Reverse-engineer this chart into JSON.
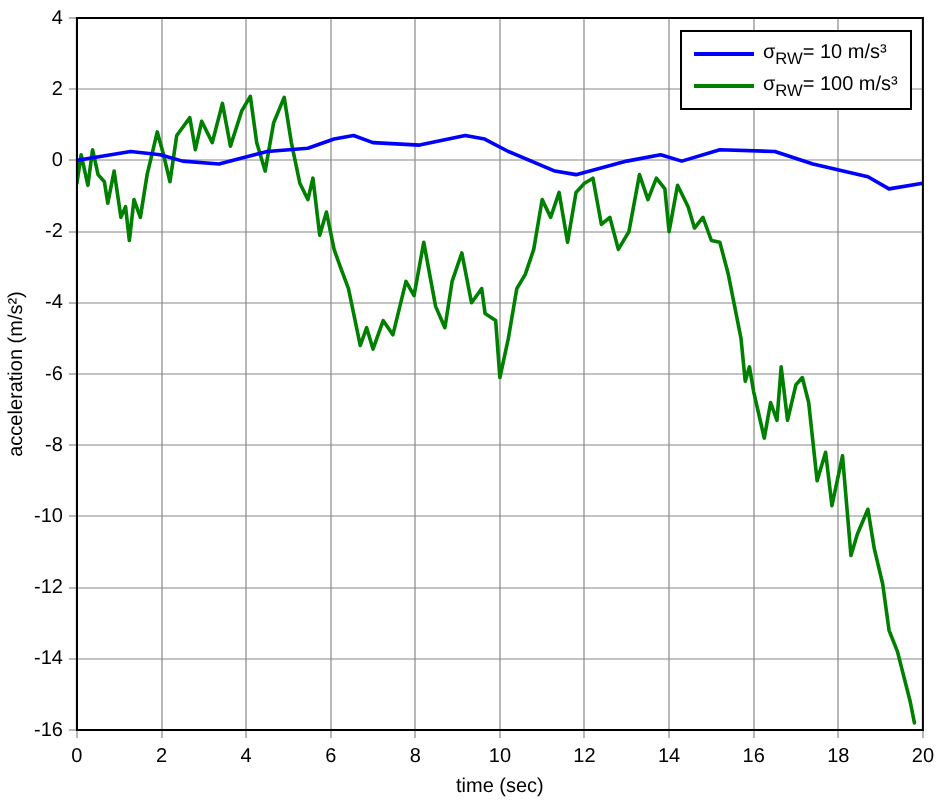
{
  "chart_data": {
    "type": "line",
    "xlabel": "time (sec)",
    "ylabel": "acceleration (m/s²)",
    "xlim": [
      0,
      20
    ],
    "xticks": [
      0,
      2,
      4,
      6,
      8,
      10,
      12,
      14,
      16,
      18,
      20
    ],
    "ylim": [
      -16,
      4
    ],
    "yticks": [
      -16,
      -14,
      -12,
      -10,
      -8,
      -6,
      -4,
      -2,
      0,
      2,
      4
    ],
    "grid": true,
    "legend": "top right",
    "marker": "none",
    "line_style": "solid",
    "series": [
      {
        "name": "σ$_{RW}$= 10 m/s³",
        "color": "#0000ff",
        "x": [
          0,
          0.34,
          1.27,
          1.97,
          2.5,
          3.36,
          3.9,
          4.5,
          5.46,
          6.08,
          6.54,
          7.0,
          8.1,
          9.18,
          9.64,
          10.2,
          11.3,
          11.8,
          13.0,
          13.8,
          14.3,
          15.2,
          16.5,
          17.4,
          18.7,
          19.2,
          20.0
        ],
        "values": [
          0,
          0.07,
          0.25,
          0.16,
          -0.02,
          -0.1,
          0.07,
          0.25,
          0.34,
          0.6,
          0.7,
          0.5,
          0.43,
          0.7,
          0.6,
          0.25,
          -0.3,
          -0.4,
          -0.02,
          0.16,
          -0.02,
          0.3,
          0.25,
          -0.1,
          -0.46,
          -0.8,
          -0.64
        ]
      },
      {
        "name": "σ$_{RW}$= 100 m/s³",
        "color": "#008000",
        "x": [
          0,
          0.1,
          0.26,
          0.37,
          0.5,
          0.65,
          0.73,
          0.88,
          1.04,
          1.15,
          1.24,
          1.35,
          1.5,
          1.66,
          1.9,
          2.05,
          2.2,
          2.36,
          2.67,
          2.8,
          2.95,
          3.2,
          3.44,
          3.63,
          3.9,
          4.1,
          4.25,
          4.45,
          4.65,
          4.9,
          5.07,
          5.27,
          5.46,
          5.58,
          5.74,
          5.9,
          6.08,
          6.23,
          6.42,
          6.7,
          6.85,
          7.0,
          7.24,
          7.47,
          7.78,
          7.97,
          8.2,
          8.48,
          8.7,
          8.87,
          9.1,
          9.33,
          9.57,
          9.65,
          9.9,
          10.0,
          10.2,
          10.4,
          10.6,
          10.8,
          11.0,
          11.2,
          11.4,
          11.6,
          11.8,
          12.0,
          12.2,
          12.4,
          12.6,
          12.8,
          13.05,
          13.3,
          13.5,
          13.7,
          13.9,
          14.0,
          14.2,
          14.45,
          14.6,
          14.8,
          15.0,
          15.2,
          15.4,
          15.55,
          15.7,
          15.8,
          15.9,
          16.0,
          16.25,
          16.4,
          16.55,
          16.65,
          16.8,
          17.0,
          17.15,
          17.3,
          17.5,
          17.7,
          17.85,
          18.1,
          18.3,
          18.45,
          18.7,
          18.85,
          19.05,
          19.2,
          19.4,
          19.55,
          19.7,
          19.8
        ],
        "values": [
          -0.64,
          0.16,
          -0.7,
          0.3,
          -0.4,
          -0.6,
          -1.2,
          -0.3,
          -1.6,
          -1.3,
          -2.25,
          -1.1,
          -1.6,
          -0.4,
          0.8,
          0.15,
          -0.6,
          0.7,
          1.2,
          0.3,
          1.1,
          0.5,
          1.6,
          0.4,
          1.4,
          1.8,
          0.5,
          -0.3,
          1.05,
          1.77,
          0.5,
          -0.64,
          -1.1,
          -0.5,
          -2.1,
          -1.45,
          -2.5,
          -3.0,
          -3.6,
          -5.2,
          -4.7,
          -5.3,
          -4.5,
          -4.9,
          -3.4,
          -3.8,
          -2.3,
          -4.1,
          -4.7,
          -3.4,
          -2.6,
          -4.0,
          -3.6,
          -4.3,
          -4.5,
          -6.1,
          -5.0,
          -3.6,
          -3.2,
          -2.5,
          -1.1,
          -1.6,
          -0.9,
          -2.3,
          -0.9,
          -0.64,
          -0.5,
          -1.8,
          -1.6,
          -2.5,
          -2.0,
          -0.4,
          -1.1,
          -0.5,
          -0.8,
          -2.0,
          -0.7,
          -1.3,
          -1.9,
          -1.6,
          -2.25,
          -2.3,
          -3.2,
          -4.1,
          -5.0,
          -6.2,
          -5.8,
          -6.5,
          -7.8,
          -6.8,
          -7.3,
          -5.8,
          -7.3,
          -6.3,
          -6.1,
          -6.8,
          -9.0,
          -8.2,
          -9.7,
          -8.3,
          -11.1,
          -10.5,
          -9.8,
          -10.9,
          -11.9,
          -13.2,
          -13.8,
          -14.5,
          -15.2,
          -15.8
        ]
      }
    ]
  }
}
